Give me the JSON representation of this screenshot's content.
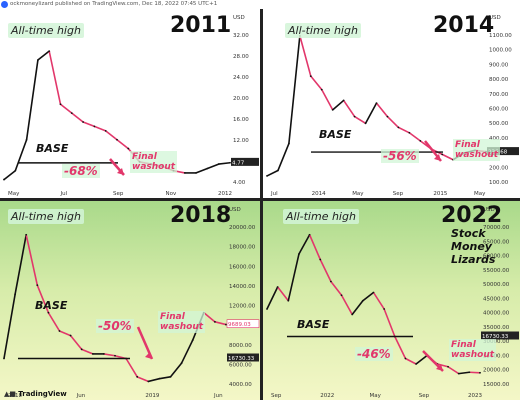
{
  "header": {
    "author_line": "ockmoneylizard published on TradingView.com, Dec 18, 2022 07:45 UTC+1"
  },
  "footer": {
    "tradingview": "TradingView"
  },
  "labels": {
    "ath": "All-time high",
    "base": "BASE",
    "final": "Final",
    "washout": "washout",
    "brand": [
      "Stock",
      "Money",
      "Lizards"
    ]
  },
  "colors": {
    "up": "#111111",
    "down": "#e2376b",
    "pink": "#e2376b",
    "green_bg_top": "#a9d98a",
    "green_bg_bottom": "#f4f7c7"
  },
  "chart_data": [
    {
      "type": "line",
      "title": "2011",
      "currency": "USD",
      "y_ticks": [
        "32.00",
        "28.00",
        "24.00",
        "20.00",
        "16.00",
        "12.00",
        "8.00",
        "4.00"
      ],
      "ylim": [
        0,
        35
      ],
      "x_ticks": [
        "May",
        "Jul",
        "Sep",
        "Nov",
        "2012"
      ],
      "last_price": "4.77",
      "drawdown_label": "-68%",
      "base_price": 4.77,
      "series": [
        {
          "x": [
            0,
            1,
            2,
            3,
            4,
            5,
            6,
            7,
            8,
            9,
            10,
            11,
            12,
            13,
            14,
            15,
            16,
            17,
            18,
            19,
            20
          ],
          "values": [
            1,
            3,
            10,
            28,
            30,
            18,
            16,
            14,
            13,
            12,
            10,
            8,
            5,
            4.5,
            4,
            3,
            2.5,
            2.5,
            3.5,
            4.5,
            4.8
          ]
        }
      ]
    },
    {
      "type": "line",
      "title": "2014",
      "currency": "USD",
      "y_ticks": [
        "1100.00",
        "1000.00",
        "900.00",
        "800.00",
        "700.00",
        "600.00",
        "500.00",
        "400.00",
        "300.00",
        "200.00",
        "100.00"
      ],
      "ylim": [
        0,
        1150
      ],
      "x_ticks": [
        "Jul",
        "2014",
        "May",
        "Sep",
        "2015",
        "May"
      ],
      "last_price": "236.68",
      "drawdown_label": "-56%",
      "base_price": 236.68,
      "series": [
        {
          "x": [
            0,
            1,
            2,
            3,
            4,
            5,
            6,
            7,
            8,
            9,
            10,
            11,
            12,
            13,
            14,
            15,
            16,
            17,
            18,
            19,
            20
          ],
          "values": [
            60,
            100,
            300,
            1100,
            800,
            700,
            550,
            620,
            500,
            450,
            600,
            500,
            420,
            380,
            320,
            260,
            220,
            180,
            230,
            250,
            240
          ]
        }
      ]
    },
    {
      "type": "line",
      "title": "2018",
      "currency": "USD",
      "y_ticks": [
        "20000.00",
        "18000.00",
        "16000.00",
        "14000.00",
        "12000.00",
        "10000.00",
        "8000.00",
        "6000.00",
        "4000.00"
      ],
      "ylim": [
        3000,
        21000
      ],
      "x_ticks": [
        "2018",
        "Jun",
        "2019",
        "Jun"
      ],
      "last_price": "16730.33",
      "secondary_price": "9689.03",
      "drawdown_label": "-50%",
      "base_price": 6000,
      "series": [
        {
          "x": [
            0,
            1,
            2,
            3,
            4,
            5,
            6,
            7,
            8,
            9,
            10,
            11,
            12,
            13,
            14,
            15,
            16,
            17,
            18,
            19,
            20
          ],
          "values": [
            6000,
            13000,
            19500,
            14000,
            11000,
            9000,
            8500,
            7000,
            6500,
            6500,
            6300,
            6000,
            4000,
            3500,
            3800,
            4000,
            5500,
            8000,
            11000,
            10000,
            9700
          ]
        }
      ]
    },
    {
      "type": "line",
      "title": "2022",
      "currency": "USD",
      "y_ticks": [
        "70000.00",
        "65000.00",
        "60000.00",
        "55000.00",
        "50000.00",
        "45000.00",
        "40000.00",
        "35000.00",
        "30000.00",
        "25000.00",
        "20000.00",
        "15000.00"
      ],
      "ylim": [
        12000,
        72000
      ],
      "x_ticks": [
        "Sep",
        "2022",
        "May",
        "Sep",
        "2023"
      ],
      "last_price": "16730.33",
      "drawdown_label": "-46%",
      "base_price": 30000,
      "series": [
        {
          "x": [
            0,
            1,
            2,
            3,
            4,
            5,
            6,
            7,
            8,
            9,
            10,
            11,
            12,
            13,
            14,
            15,
            16,
            17,
            18,
            19,
            20
          ],
          "values": [
            40000,
            48000,
            43000,
            60000,
            67000,
            58000,
            50000,
            45000,
            38000,
            43000,
            46000,
            40000,
            30000,
            22000,
            20000,
            23000,
            20000,
            19000,
            16500,
            17000,
            16800
          ]
        }
      ]
    }
  ]
}
